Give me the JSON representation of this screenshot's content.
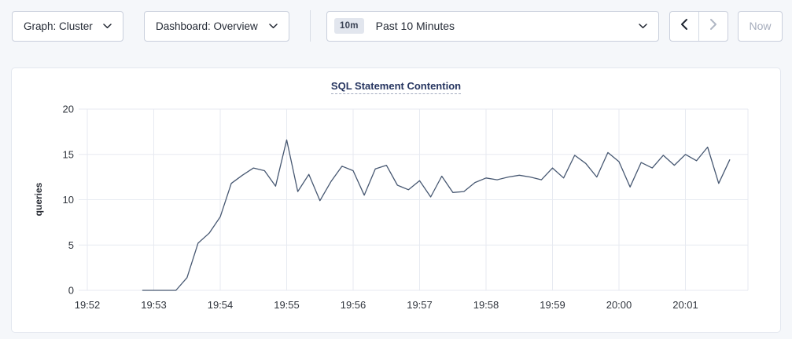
{
  "toolbar": {
    "graph_dropdown": {
      "label": "Graph: Cluster"
    },
    "dashboard_dropdown": {
      "label": "Dashboard: Overview"
    },
    "time_selector": {
      "badge": "10m",
      "label": "Past 10 Minutes"
    },
    "prev_icon": "chevron-left",
    "next_icon": "chevron-right",
    "now_button_label": "Now"
  },
  "chart_data": {
    "type": "line",
    "title": "SQL Statement Contention",
    "xlabel": "",
    "ylabel": "queries",
    "ylim": [
      0,
      20
    ],
    "y_ticks": [
      0,
      5,
      10,
      15,
      20
    ],
    "x_tick_labels": [
      "19:52",
      "19:53",
      "19:54",
      "19:55",
      "19:56",
      "19:57",
      "19:58",
      "19:59",
      "20:00",
      "20:01"
    ],
    "grid": true,
    "legend_position": "none",
    "line_color": "#475872",
    "grid_color": "#e7eaf1",
    "tick_color": "#30353d",
    "series": [
      {
        "name": "queries",
        "start_time": "19:52:50",
        "interval_seconds": 10,
        "values": [
          0,
          0,
          0,
          0,
          1.4,
          5.2,
          6.3,
          8.1,
          11.8,
          12.7,
          13.5,
          13.2,
          11.5,
          16.6,
          10.9,
          12.8,
          9.9,
          12,
          13.7,
          13.2,
          10.5,
          13.4,
          13.8,
          11.6,
          11.1,
          12.1,
          10.3,
          12.6,
          10.8,
          10.9,
          11.9,
          12.4,
          12.2,
          12.5,
          12.7,
          12.5,
          12.2,
          13.5,
          12.4,
          14.9,
          14,
          12.5,
          15.2,
          14.2,
          11.4,
          14.1,
          13.5,
          14.9,
          13.8,
          15,
          14.3,
          15.8,
          11.8,
          14.4
        ]
      }
    ]
  }
}
